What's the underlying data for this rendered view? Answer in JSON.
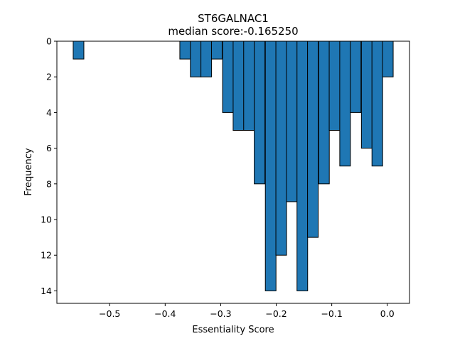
{
  "chart_data": {
    "type": "bar",
    "title": "ST6GALNAC1",
    "subtitle": "median score:-0.165250",
    "xlabel": "Essentiality Score",
    "ylabel": "Frequency",
    "y_inverted": true,
    "xlim": [
      -0.595,
      0.04
    ],
    "ylim": [
      0,
      14.7
    ],
    "x_ticks": [
      -0.5,
      -0.4,
      -0.3,
      -0.2,
      -0.1,
      0.0
    ],
    "x_tick_labels": [
      "−0.5",
      "−0.4",
      "−0.3",
      "−0.2",
      "−0.1",
      "0.0"
    ],
    "y_ticks": [
      0,
      2,
      4,
      6,
      8,
      10,
      12,
      14
    ],
    "y_tick_labels": [
      "0",
      "2",
      "4",
      "6",
      "8",
      "10",
      "12",
      "14"
    ],
    "bin_width": 0.0192,
    "bars": [
      {
        "x": -0.556,
        "value": 1
      },
      {
        "x": -0.364,
        "value": 1
      },
      {
        "x": -0.345,
        "value": 2
      },
      {
        "x": -0.326,
        "value": 2
      },
      {
        "x": -0.307,
        "value": 1
      },
      {
        "x": -0.287,
        "value": 4
      },
      {
        "x": -0.268,
        "value": 5
      },
      {
        "x": -0.249,
        "value": 5
      },
      {
        "x": -0.23,
        "value": 8
      },
      {
        "x": -0.21,
        "value": 14
      },
      {
        "x": -0.191,
        "value": 12
      },
      {
        "x": -0.172,
        "value": 9
      },
      {
        "x": -0.153,
        "value": 14
      },
      {
        "x": -0.134,
        "value": 11
      },
      {
        "x": -0.114,
        "value": 8
      },
      {
        "x": -0.095,
        "value": 5
      },
      {
        "x": -0.076,
        "value": 7
      },
      {
        "x": -0.057,
        "value": 4
      },
      {
        "x": -0.037,
        "value": 6
      },
      {
        "x": -0.018,
        "value": 7
      },
      {
        "x": 0.001,
        "value": 2
      }
    ],
    "bar_color": "#1f77b4",
    "edge_color": "#000000",
    "grid": false,
    "legend": "none"
  }
}
